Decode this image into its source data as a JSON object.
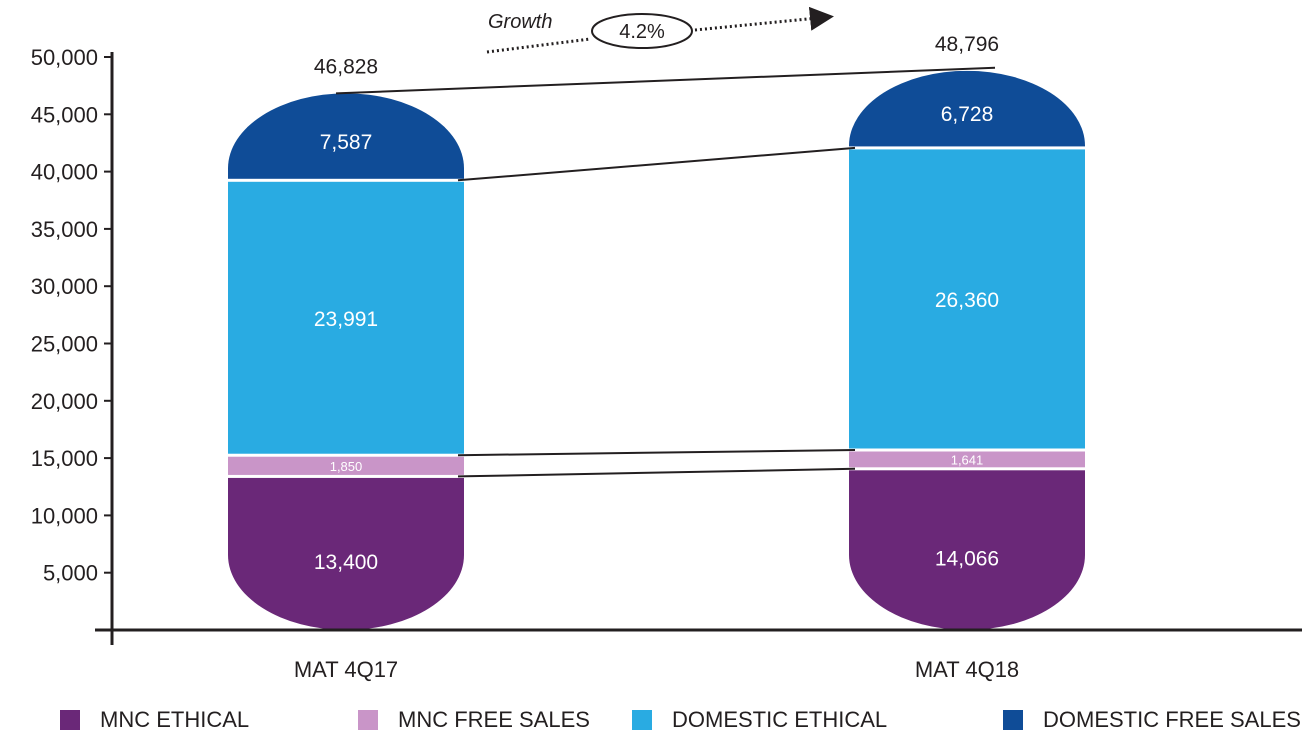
{
  "chart_data": {
    "type": "bar",
    "stacked": true,
    "categories": [
      "MAT 4Q17",
      "MAT 4Q18"
    ],
    "series": [
      {
        "name": "MNC ETHICAL",
        "color": "#6a2878",
        "values": [
          13400,
          14066
        ],
        "labels": [
          "13,400",
          "14,066"
        ]
      },
      {
        "name": "MNC FREE SALES",
        "color": "#c995c8",
        "values": [
          1850,
          1641
        ],
        "labels": [
          "1,850",
          "1,641"
        ]
      },
      {
        "name": "DOMESTIC ETHICAL",
        "color": "#29abe2",
        "values": [
          23991,
          26360
        ],
        "labels": [
          "23,991",
          "26,360"
        ]
      },
      {
        "name": "DOMESTIC FREE SALES",
        "color": "#0f4c97",
        "values": [
          7587,
          6728
        ],
        "labels": [
          "7,587",
          "6,728"
        ]
      }
    ],
    "totals": [
      46828,
      48796
    ],
    "total_labels": [
      "46,828",
      "48,796"
    ],
    "ylim": [
      0,
      50000
    ],
    "y_ticks": [
      5000,
      10000,
      15000,
      20000,
      25000,
      30000,
      35000,
      40000,
      45000,
      50000
    ],
    "y_tick_labels": [
      "5,000",
      "10,000",
      "15,000",
      "20,000",
      "25,000",
      "30,000",
      "35,000",
      "40,000",
      "45,000",
      "50,000"
    ],
    "growth": {
      "label": "Growth",
      "value": "4.2%"
    },
    "legend_position": "bottom",
    "grid": false
  }
}
